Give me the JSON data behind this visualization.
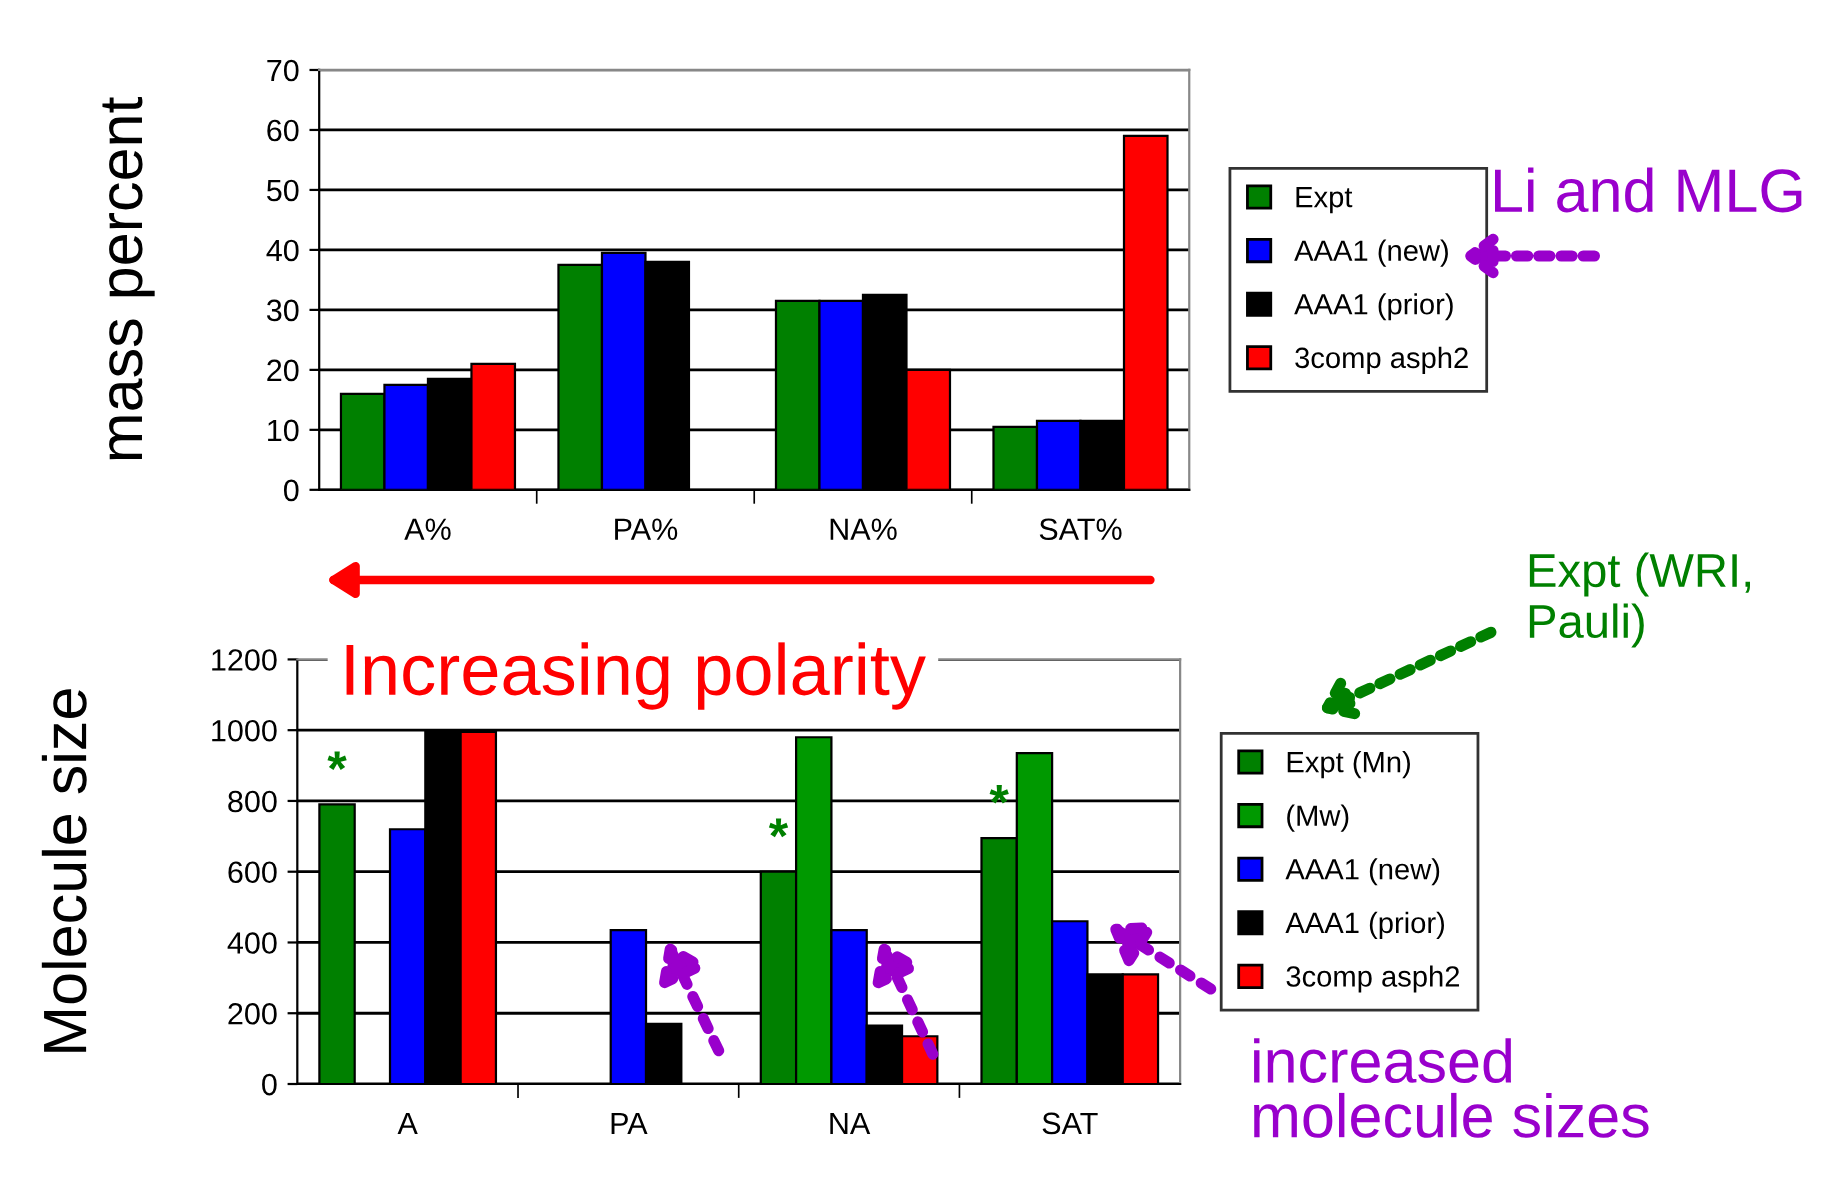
{
  "chart_data": [
    {
      "type": "bar",
      "ylabel": "mass percent",
      "categories": [
        "A%",
        "PA%",
        "NA%",
        "SAT%"
      ],
      "series": [
        {
          "name": "Expt",
          "color": "#008000",
          "values": [
            16,
            37.5,
            31.5,
            10.5
          ]
        },
        {
          "name": "AAA1 (new)",
          "color": "#0000ff",
          "values": [
            17.5,
            39.5,
            31.5,
            11.5
          ]
        },
        {
          "name": "AAA1 (prior)",
          "color": "#000000",
          "values": [
            18.5,
            38,
            32.5,
            11.5
          ]
        },
        {
          "name": "3comp asph2",
          "color": "#ff0000",
          "values": [
            21,
            null,
            20,
            59
          ]
        }
      ],
      "ylim": [
        0,
        70
      ],
      "yticks": [
        0,
        10,
        20,
        30,
        40,
        50,
        60,
        70
      ],
      "grid": "y",
      "legend": "right",
      "annotations": [
        "Increasing polarity",
        "Li and MLG"
      ]
    },
    {
      "type": "bar",
      "ylabel": "Molecule size",
      "categories": [
        "A",
        "PA",
        "NA",
        "SAT"
      ],
      "series": [
        {
          "name": "Expt (Mn)",
          "color": "#008000",
          "values": [
            790,
            null,
            600,
            695
          ]
        },
        {
          "name": "(Mw)",
          "color": "#009900",
          "values": [
            null,
            null,
            980,
            935
          ]
        },
        {
          "name": "AAA1 (new)",
          "color": "#0000ff",
          "values": [
            720,
            435,
            435,
            460
          ]
        },
        {
          "name": "AAA1 (prior)",
          "color": "#000000",
          "values": [
            995,
            170,
            165,
            310
          ]
        },
        {
          "name": "3comp asph2",
          "color": "#ff0000",
          "values": [
            995,
            null,
            135,
            310
          ]
        }
      ],
      "ylim": [
        0,
        1200
      ],
      "yticks": [
        0,
        200,
        400,
        600,
        800,
        1000,
        1200
      ],
      "grid": "y",
      "legend": "right",
      "annotations": [
        "*",
        "*",
        "*",
        "Expt (WRI, Pauli)",
        "increased molecule sizes"
      ]
    }
  ]
}
